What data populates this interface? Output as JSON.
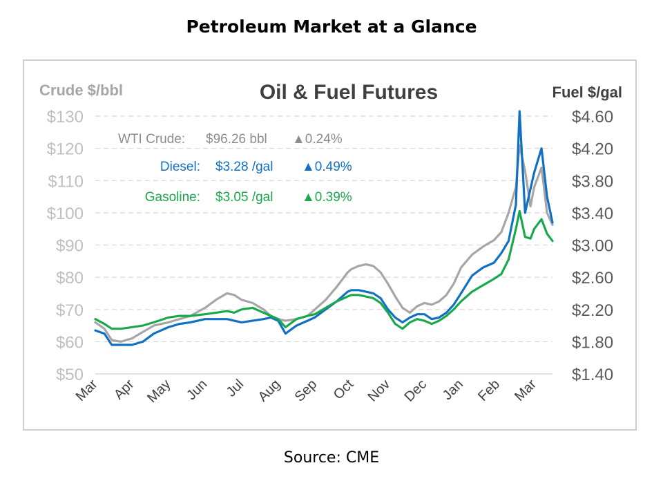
{
  "page": {
    "title": "Petroleum Market at a Glance",
    "source": "Source: CME"
  },
  "colors": {
    "crude": "#a6a6a6",
    "diesel": "#1170c4",
    "gasoline": "#19a84b",
    "axis_text": "#bfbfbf",
    "grid": "#d9d9d9"
  },
  "chart_data": {
    "type": "line",
    "title": "Oil & Fuel Futures",
    "y_left_label": "Crude $/bbl",
    "y_right_label": "Fuel $/gal",
    "y_left_range": [
      50,
      130
    ],
    "y_left_ticks": [
      "$50",
      "$60",
      "$70",
      "$80",
      "$90",
      "$100",
      "$110",
      "$120",
      "$130"
    ],
    "y_right_range": [
      1.4,
      4.6
    ],
    "y_right_ticks": [
      "$1.40",
      "$1.80",
      "$2.20",
      "$2.60",
      "$3.00",
      "$3.40",
      "$3.80",
      "$4.20",
      "$4.60"
    ],
    "x_ticks": [
      "Mar",
      "Apr",
      "May",
      "Jun",
      "Jul",
      "Aug",
      "Sep",
      "Oct",
      "Nov",
      "Dec",
      "Jan",
      "Feb",
      "Mar"
    ],
    "x_range": [
      0,
      12.5
    ],
    "grid": "horizontal dashed",
    "annotations": [
      {
        "series": "crude",
        "label": "WTI Crude:",
        "value": "$96.26 bbl",
        "change": "▲0.24%"
      },
      {
        "series": "diesel",
        "label": "Diesel:",
        "value": "$3.28 /gal",
        "change": "▲0.49%"
      },
      {
        "series": "gasoline",
        "label": "Gasoline:",
        "value": "$3.05 /gal",
        "change": "▲0.39%"
      }
    ],
    "series": [
      {
        "key": "crude",
        "axis": "left",
        "x": [
          0,
          0.25,
          0.45,
          0.7,
          1.0,
          1.3,
          1.6,
          2.0,
          2.3,
          2.6,
          3.0,
          3.3,
          3.6,
          3.8,
          4.0,
          4.3,
          4.6,
          4.8,
          5.0,
          5.2,
          5.5,
          5.8,
          6.0,
          6.3,
          6.6,
          6.9,
          7.0,
          7.2,
          7.4,
          7.6,
          7.8,
          8.0,
          8.2,
          8.4,
          8.6,
          8.8,
          9.0,
          9.2,
          9.4,
          9.6,
          9.8,
          10.0,
          10.3,
          10.6,
          10.9,
          11.1,
          11.3,
          11.5,
          11.6,
          11.75,
          11.9,
          12.0,
          12.2,
          12.35,
          12.5
        ],
        "y": [
          66,
          64,
          60.5,
          60,
          61,
          63,
          65,
          66,
          67,
          68,
          70.5,
          73,
          75,
          74.5,
          73,
          72,
          70,
          68,
          67,
          66.5,
          67,
          68,
          70,
          73,
          77,
          81.5,
          82.5,
          83.5,
          84,
          83.5,
          81.5,
          78,
          74,
          70.5,
          69,
          71,
          72,
          71.5,
          72.5,
          74.5,
          78,
          83,
          87,
          89.5,
          91.5,
          94,
          100,
          108,
          121,
          113,
          102,
          108,
          114,
          100,
          96.26
        ]
      },
      {
        "key": "diesel",
        "axis": "right",
        "x": [
          0,
          0.25,
          0.45,
          0.7,
          1.0,
          1.3,
          1.6,
          2.0,
          2.3,
          2.6,
          3.0,
          3.3,
          3.6,
          3.8,
          4.0,
          4.3,
          4.6,
          4.8,
          5.0,
          5.2,
          5.5,
          5.8,
          6.0,
          6.3,
          6.6,
          6.9,
          7.0,
          7.2,
          7.4,
          7.6,
          7.8,
          8.0,
          8.2,
          8.4,
          8.6,
          8.8,
          9.0,
          9.2,
          9.4,
          9.6,
          9.8,
          10.0,
          10.3,
          10.6,
          10.9,
          11.1,
          11.3,
          11.5,
          11.6,
          11.75,
          11.9,
          12.0,
          12.2,
          12.35,
          12.5
        ],
        "y": [
          1.94,
          1.9,
          1.76,
          1.76,
          1.76,
          1.8,
          1.9,
          1.98,
          2.02,
          2.04,
          2.08,
          2.08,
          2.08,
          2.06,
          2.04,
          2.06,
          2.08,
          2.1,
          2.06,
          1.9,
          2.0,
          2.06,
          2.1,
          2.2,
          2.3,
          2.42,
          2.44,
          2.44,
          2.42,
          2.4,
          2.34,
          2.2,
          2.1,
          2.04,
          2.1,
          2.14,
          2.14,
          2.08,
          2.1,
          2.16,
          2.26,
          2.4,
          2.62,
          2.72,
          2.78,
          2.9,
          3.05,
          3.5,
          4.66,
          3.4,
          3.7,
          3.9,
          4.2,
          3.6,
          3.28
        ]
      },
      {
        "key": "gasoline",
        "axis": "right",
        "x": [
          0,
          0.25,
          0.45,
          0.7,
          1.0,
          1.3,
          1.6,
          2.0,
          2.3,
          2.6,
          3.0,
          3.3,
          3.6,
          3.8,
          4.0,
          4.3,
          4.6,
          4.8,
          5.0,
          5.2,
          5.5,
          5.8,
          6.0,
          6.3,
          6.6,
          6.9,
          7.0,
          7.2,
          7.4,
          7.6,
          7.8,
          8.0,
          8.2,
          8.4,
          8.6,
          8.8,
          9.0,
          9.2,
          9.4,
          9.6,
          9.8,
          10.0,
          10.3,
          10.6,
          10.9,
          11.1,
          11.3,
          11.5,
          11.6,
          11.75,
          11.9,
          12.0,
          12.2,
          12.35,
          12.5
        ],
        "y": [
          2.08,
          2.02,
          1.96,
          1.96,
          1.98,
          2.0,
          2.04,
          2.1,
          2.12,
          2.12,
          2.14,
          2.16,
          2.18,
          2.16,
          2.2,
          2.22,
          2.16,
          2.12,
          2.08,
          1.98,
          2.08,
          2.12,
          2.14,
          2.22,
          2.3,
          2.36,
          2.38,
          2.38,
          2.36,
          2.34,
          2.28,
          2.16,
          2.02,
          1.96,
          2.04,
          2.08,
          2.06,
          2.02,
          2.06,
          2.12,
          2.2,
          2.3,
          2.42,
          2.5,
          2.58,
          2.64,
          2.82,
          3.2,
          3.42,
          3.1,
          3.08,
          3.2,
          3.32,
          3.14,
          3.05
        ]
      }
    ]
  }
}
